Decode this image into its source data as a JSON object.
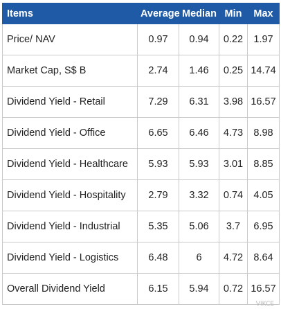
{
  "table": {
    "headers": [
      "Items",
      "Average",
      "Median",
      "Min",
      "Max"
    ],
    "rows": [
      [
        "Price/ NAV",
        "0.97",
        "0.94",
        "0.22",
        "1.97"
      ],
      [
        "Market Cap, S$ B",
        "2.74",
        "1.46",
        "0.25",
        "14.74"
      ],
      [
        "Dividend Yield - Retail",
        "7.29",
        "6.31",
        "3.98",
        "16.57"
      ],
      [
        "Dividend Yield - Office",
        "6.65",
        "6.46",
        "4.73",
        "8.98"
      ],
      [
        "Dividend Yield - Healthcare",
        "5.93",
        "5.93",
        "3.01",
        "8.85"
      ],
      [
        "Dividend Yield - Hospitality",
        "2.79",
        "3.32",
        "0.74",
        "4.05"
      ],
      [
        "Dividend Yield - Industrial",
        "5.35",
        "5.06",
        "3.7",
        "6.95"
      ],
      [
        "Dividend Yield - Logistics",
        "6.48",
        "6",
        "4.72",
        "8.64"
      ],
      [
        "Overall Dividend Yield",
        "6.15",
        "5.94",
        "0.72",
        "16.57"
      ]
    ]
  },
  "watermark": "VIKCE",
  "colors": {
    "header_bg": "#1f5aa6",
    "header_text": "#ffffff",
    "border": "#c9c9c9",
    "text": "#222222"
  }
}
